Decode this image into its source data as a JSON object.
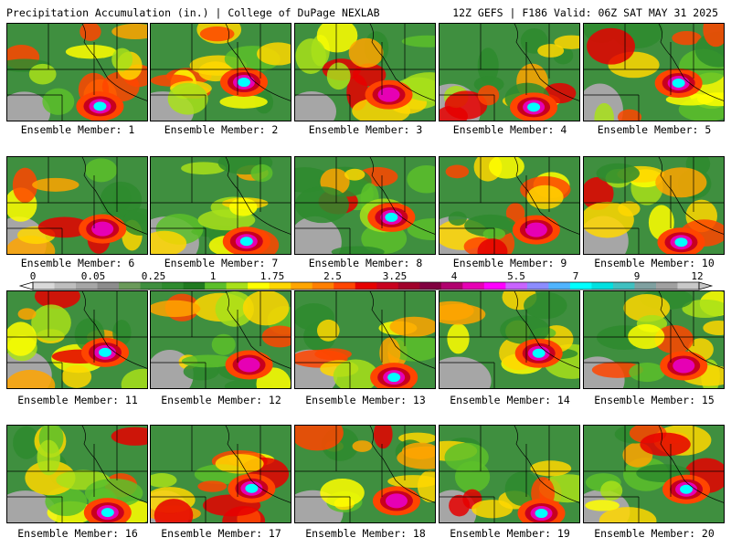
{
  "header": {
    "title_left": "Precipitation Accumulation (in.) | College of DuPage NEXLAB",
    "title_right": "12Z GEFS | F186 Valid: 06Z SAT MAY 31 2025"
  },
  "colorbar": {
    "tick_labels": [
      "0",
      "0.05",
      "0.25",
      "1",
      "1.75",
      "2.5",
      "3.25",
      "4",
      "5.5",
      "7",
      "9",
      "12"
    ],
    "colors": [
      "#d9d9d9",
      "#bebebe",
      "#a6a6a6",
      "#8c8c8c",
      "#6a9a5a",
      "#3f8f3f",
      "#2e8b2e",
      "#1f7a1f",
      "#5cbf2a",
      "#a8e01a",
      "#ffff00",
      "#ffd700",
      "#ffa500",
      "#ff7f00",
      "#ff4500",
      "#e60000",
      "#c8001e",
      "#a0002a",
      "#800040",
      "#b0006e",
      "#e600b4",
      "#ff00ff",
      "#c864ff",
      "#8c8cff",
      "#50b4ff",
      "#00ffff",
      "#00e0e0",
      "#40c0c0",
      "#7fa0a0",
      "#a0a0a0",
      "#c8c8c8"
    ]
  },
  "members": [
    {
      "label": "Ensemble Member: 1"
    },
    {
      "label": "Ensemble Member: 2"
    },
    {
      "label": "Ensemble Member: 3"
    },
    {
      "label": "Ensemble Member: 4"
    },
    {
      "label": "Ensemble Member: 5"
    },
    {
      "label": "Ensemble Member: 6"
    },
    {
      "label": "Ensemble Member: 7"
    },
    {
      "label": "Ensemble Member: 8"
    },
    {
      "label": "Ensemble Member: 9"
    },
    {
      "label": "Ensemble Member: 10"
    },
    {
      "label": "Ensemble Member: 11"
    },
    {
      "label": "Ensemble Member: 12"
    },
    {
      "label": "Ensemble Member: 13"
    },
    {
      "label": "Ensemble Member: 14"
    },
    {
      "label": "Ensemble Member: 15"
    },
    {
      "label": "Ensemble Member: 16"
    },
    {
      "label": "Ensemble Member: 17"
    },
    {
      "label": "Ensemble Member: 18"
    },
    {
      "label": "Ensemble Member: 19"
    },
    {
      "label": "Ensemble Member: 20"
    }
  ]
}
